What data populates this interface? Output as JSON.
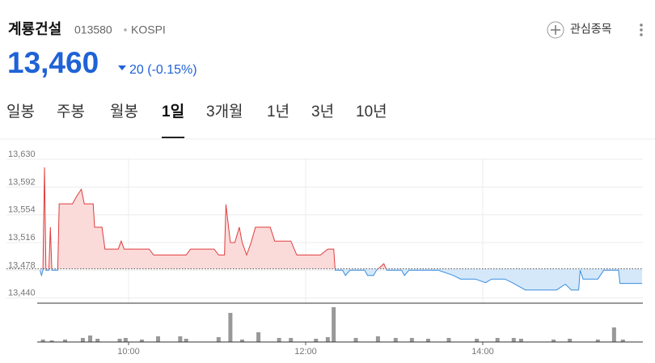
{
  "header": {
    "name": "계룡건설",
    "code": "013580",
    "market": "KOSPI",
    "price": "13,460",
    "change": "20",
    "change_pct": "(-0.15%)",
    "watch": "관심종목"
  },
  "tabs": [
    "일봉",
    "주봉",
    "월봉",
    "1일",
    "3개월",
    "1년",
    "3년",
    "10년"
  ],
  "active_tab": 3,
  "chart_data": {
    "type": "line",
    "x": [
      "09:00",
      "09:01",
      "09:02",
      "09:03",
      "09:04",
      "09:06",
      "09:07",
      "09:08",
      "09:12",
      "09:13",
      "09:22",
      "09:25",
      "09:28",
      "09:30",
      "09:36",
      "09:37",
      "09:42",
      "09:44",
      "09:53",
      "09:55",
      "09:57",
      "10:14",
      "10:17",
      "10:39",
      "10:42",
      "10:58",
      "11:01",
      "11:05",
      "11:06",
      "11:09",
      "11:12",
      "11:15",
      "11:17",
      "11:20",
      "11:23",
      "11:26",
      "11:36",
      "11:39",
      "11:50",
      "11:54",
      "12:10",
      "12:15",
      "12:19",
      "12:20",
      "12:25",
      "12:27",
      "12:30",
      "12:40",
      "12:42",
      "12:46",
      "12:48",
      "12:53",
      "12:55",
      "13:05",
      "13:07",
      "13:10",
      "13:30",
      "13:40",
      "13:45",
      "13:55",
      "14:02",
      "14:06",
      "14:15",
      "14:20",
      "14:29",
      "14:50",
      "14:56",
      "15:00",
      "15:05",
      "15:06",
      "15:08",
      "15:18",
      "15:22",
      "15:32",
      "15:33",
      "15:48"
    ],
    "series": [
      {
        "name": "계룡건설",
        "up_color": "#e03c3c",
        "up_fill": "#fbdada",
        "down_color": "#3a8ee0",
        "down_fill": "#d5e8fa",
        "values": [
          13478,
          13471,
          13478,
          13619,
          13478,
          13478,
          13537,
          13478,
          13478,
          13569,
          13569,
          13580,
          13589,
          13569,
          13569,
          13537,
          13537,
          13507,
          13507,
          13518,
          13507,
          13507,
          13499,
          13499,
          13507,
          13507,
          13499,
          13499,
          13568,
          13516,
          13516,
          13537,
          13516,
          13499,
          13516,
          13537,
          13537,
          13518,
          13518,
          13499,
          13499,
          13507,
          13507,
          13478,
          13478,
          13471,
          13478,
          13478,
          13471,
          13471,
          13478,
          13487,
          13478,
          13478,
          13471,
          13478,
          13478,
          13471,
          13466,
          13466,
          13461,
          13466,
          13466,
          13461,
          13451,
          13451,
          13459,
          13451,
          13451,
          13478,
          13466,
          13466,
          13478,
          13478,
          13460,
          13460
        ]
      }
    ],
    "prev_close": 13480,
    "xlim": [
      "09:00",
      "15:50"
    ],
    "xticks": [
      "10:00",
      "12:00",
      "14:00"
    ],
    "ylim": [
      13433,
      13640
    ],
    "yticks": [
      {
        "value": 13440,
        "label": "13,440"
      },
      {
        "value": 13478,
        "label": "13,478"
      },
      {
        "value": 13516,
        "label": "13,516"
      },
      {
        "value": 13554,
        "label": "13,554"
      },
      {
        "value": 13592,
        "label": "13,592"
      },
      {
        "value": 13630,
        "label": "13,630"
      }
    ],
    "grid": true,
    "volume": {
      "color": "#999999",
      "ylim": [
        0,
        45
      ],
      "x": [
        "09:02",
        "09:08",
        "09:17",
        "09:29",
        "09:34",
        "09:39",
        "09:54",
        "09:58",
        "10:09",
        "10:20",
        "10:35",
        "10:39",
        "11:01",
        "11:09",
        "11:17",
        "11:28",
        "11:42",
        "11:50",
        "12:07",
        "12:15",
        "12:19",
        "12:34",
        "12:49",
        "13:01",
        "13:12",
        "13:23",
        "13:37",
        "13:56",
        "14:10",
        "14:21",
        "14:26",
        "14:48",
        "14:59",
        "15:18",
        "15:29",
        "15:35"
      ],
      "values": [
        3,
        2,
        3,
        5,
        8,
        4,
        4,
        5,
        3,
        7,
        7,
        4,
        6,
        36,
        3,
        12,
        5,
        5,
        4,
        6,
        43,
        5,
        7,
        5,
        5,
        4,
        5,
        4,
        5,
        5,
        4,
        3,
        4,
        3,
        18,
        3
      ]
    }
  }
}
